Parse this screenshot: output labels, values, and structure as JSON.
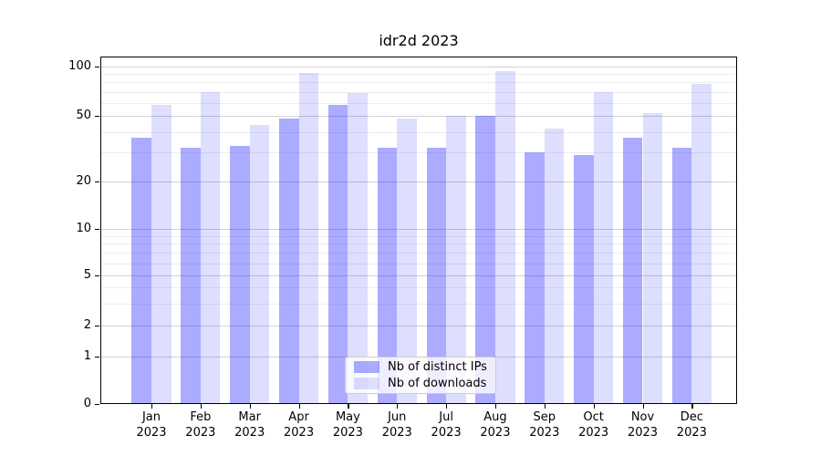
{
  "chart_data": {
    "type": "bar",
    "title": "idr2d 2023",
    "categories": [
      "Jan",
      "Feb",
      "Mar",
      "Apr",
      "May",
      "Jun",
      "Jul",
      "Aug",
      "Sep",
      "Oct",
      "Nov",
      "Dec"
    ],
    "category_year": "2023",
    "series": [
      {
        "name": "Nb of distinct IPs",
        "color": "#0000ff",
        "alpha": 0.33,
        "values": [
          37,
          32,
          33,
          48,
          58,
          32,
          32,
          50,
          30,
          29,
          37,
          32
        ]
      },
      {
        "name": "Nb of downloads",
        "color": "#0000ff",
        "alpha": 0.13,
        "values": [
          58,
          70,
          44,
          91,
          69,
          48,
          50,
          94,
          42,
          70,
          52,
          78
        ]
      }
    ],
    "yscale": "symlog",
    "yticks": [
      0,
      1,
      2,
      5,
      10,
      20,
      50,
      100
    ],
    "ytick_labels": [
      "0",
      "1",
      "2",
      "5",
      "10",
      "20",
      "50",
      "100"
    ],
    "minor_yticks": [
      3,
      4,
      6,
      7,
      8,
      9,
      30,
      40,
      60,
      70,
      80,
      90
    ],
    "grid": true,
    "legend_position": "lower center"
  }
}
